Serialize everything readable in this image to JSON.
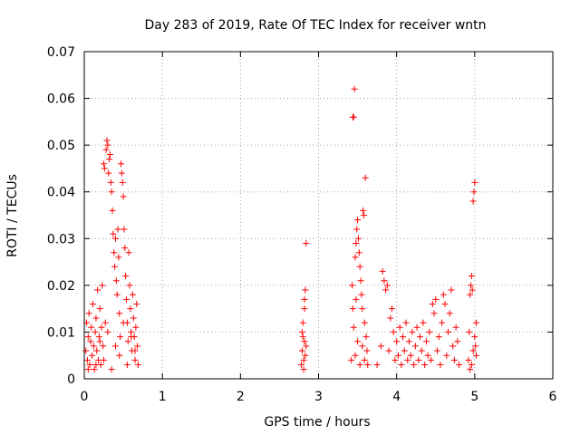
{
  "chart_data": {
    "type": "scatter",
    "title": "Day 283 of 2019, Rate Of TEC Index for receiver wntn",
    "xlabel": "GPS time / hours",
    "ylabel": "ROTI / TECUs",
    "xlim": [
      0,
      6
    ],
    "ylim": [
      0,
      0.07
    ],
    "xticks": [
      0,
      1,
      2,
      3,
      4,
      5,
      6
    ],
    "yticks": [
      0,
      0.01,
      0.02,
      0.03,
      0.04,
      0.05,
      0.06,
      0.07
    ],
    "xtick_labels": [
      "0",
      "1",
      "2",
      "3",
      "4",
      "5",
      "6"
    ],
    "ytick_labels": [
      "0",
      "0.01",
      "0.02",
      "0.03",
      "0.04",
      "0.05",
      "0.06",
      "0.07"
    ],
    "grid": true,
    "marker": "plus",
    "color": "#ff0000",
    "series": [
      {
        "name": "ROTI",
        "points": [
          [
            0.02,
            0.006
          ],
          [
            0.03,
            0.012
          ],
          [
            0.04,
            0.004
          ],
          [
            0.05,
            0.009
          ],
          [
            0.06,
            0.014
          ],
          [
            0.07,
            0.003
          ],
          [
            0.08,
            0.008
          ],
          [
            0.09,
            0.011
          ],
          [
            0.1,
            0.005
          ],
          [
            0.11,
            0.016
          ],
          [
            0.12,
            0.007
          ],
          [
            0.13,
            0.002
          ],
          [
            0.14,
            0.01
          ],
          [
            0.15,
            0.013
          ],
          [
            0.16,
            0.006
          ],
          [
            0.17,
            0.019
          ],
          [
            0.18,
            0.004
          ],
          [
            0.19,
            0.009
          ],
          [
            0.2,
            0.015
          ],
          [
            0.21,
            0.003
          ],
          [
            0.22,
            0.011
          ],
          [
            0.23,
            0.02
          ],
          [
            0.24,
            0.007
          ],
          [
            0.25,
            0.046
          ],
          [
            0.26,
            0.045
          ],
          [
            0.27,
            0.012
          ],
          [
            0.28,
            0.049
          ],
          [
            0.29,
            0.051
          ],
          [
            0.3,
            0.05
          ],
          [
            0.31,
            0.044
          ],
          [
            0.32,
            0.047
          ],
          [
            0.33,
            0.048
          ],
          [
            0.34,
            0.042
          ],
          [
            0.35,
            0.04
          ],
          [
            0.36,
            0.036
          ],
          [
            0.37,
            0.031
          ],
          [
            0.38,
            0.027
          ],
          [
            0.39,
            0.024
          ],
          [
            0.4,
            0.03
          ],
          [
            0.41,
            0.021
          ],
          [
            0.42,
            0.018
          ],
          [
            0.43,
            0.032
          ],
          [
            0.44,
            0.026
          ],
          [
            0.45,
            0.014
          ],
          [
            0.46,
            0.009
          ],
          [
            0.47,
            0.046
          ],
          [
            0.48,
            0.044
          ],
          [
            0.49,
            0.042
          ],
          [
            0.5,
            0.039
          ],
          [
            0.51,
            0.032
          ],
          [
            0.52,
            0.028
          ],
          [
            0.53,
            0.022
          ],
          [
            0.54,
            0.017
          ],
          [
            0.55,
            0.012
          ],
          [
            0.56,
            0.008
          ],
          [
            0.57,
            0.027
          ],
          [
            0.58,
            0.02
          ],
          [
            0.59,
            0.015
          ],
          [
            0.6,
            0.01
          ],
          [
            0.61,
            0.006
          ],
          [
            0.62,
            0.018
          ],
          [
            0.63,
            0.013
          ],
          [
            0.64,
            0.009
          ],
          [
            0.65,
            0.004
          ],
          [
            0.66,
            0.011
          ],
          [
            0.67,
            0.016
          ],
          [
            0.68,
            0.007
          ],
          [
            0.69,
            0.003
          ],
          [
            0.05,
            0.002
          ],
          [
            0.15,
            0.003
          ],
          [
            0.25,
            0.004
          ],
          [
            0.35,
            0.002
          ],
          [
            0.45,
            0.005
          ],
          [
            0.55,
            0.003
          ],
          [
            0.65,
            0.006
          ],
          [
            0.2,
            0.008
          ],
          [
            0.3,
            0.01
          ],
          [
            0.4,
            0.007
          ],
          [
            0.5,
            0.012
          ],
          [
            0.6,
            0.009
          ],
          [
            2.78,
            0.003
          ],
          [
            2.79,
            0.006
          ],
          [
            2.8,
            0.009
          ],
          [
            2.81,
            0.004
          ],
          [
            2.82,
            0.015
          ],
          [
            2.83,
            0.019
          ],
          [
            2.84,
            0.029
          ],
          [
            2.82,
            0.008
          ],
          [
            2.81,
            0.002
          ],
          [
            2.83,
            0.005
          ],
          [
            2.8,
            0.012
          ],
          [
            2.84,
            0.007
          ],
          [
            2.82,
            0.017
          ],
          [
            2.79,
            0.01
          ],
          [
            3.42,
            0.004
          ],
          [
            3.43,
            0.02
          ],
          [
            3.44,
            0.056
          ],
          [
            3.45,
            0.056
          ],
          [
            3.46,
            0.062
          ],
          [
            3.47,
            0.026
          ],
          [
            3.48,
            0.029
          ],
          [
            3.49,
            0.032
          ],
          [
            3.5,
            0.034
          ],
          [
            3.51,
            0.03
          ],
          [
            3.52,
            0.027
          ],
          [
            3.53,
            0.024
          ],
          [
            3.54,
            0.021
          ],
          [
            3.55,
            0.018
          ],
          [
            3.56,
            0.015
          ],
          [
            3.57,
            0.036
          ],
          [
            3.58,
            0.035
          ],
          [
            3.59,
            0.012
          ],
          [
            3.6,
            0.043
          ],
          [
            3.61,
            0.009
          ],
          [
            3.62,
            0.006
          ],
          [
            3.63,
            0.003
          ],
          [
            3.44,
            0.015
          ],
          [
            3.47,
            0.005
          ],
          [
            3.5,
            0.008
          ],
          [
            3.53,
            0.003
          ],
          [
            3.56,
            0.007
          ],
          [
            3.59,
            0.004
          ],
          [
            3.45,
            0.011
          ],
          [
            3.48,
            0.017
          ],
          [
            3.75,
            0.003
          ],
          [
            3.8,
            0.007
          ],
          [
            3.82,
            0.023
          ],
          [
            3.84,
            0.021
          ],
          [
            3.86,
            0.019
          ],
          [
            3.88,
            0.02
          ],
          [
            3.9,
            0.006
          ],
          [
            3.92,
            0.013
          ],
          [
            3.94,
            0.015
          ],
          [
            3.96,
            0.01
          ],
          [
            3.98,
            0.004
          ],
          [
            4.0,
            0.008
          ],
          [
            4.02,
            0.005
          ],
          [
            4.04,
            0.011
          ],
          [
            4.06,
            0.003
          ],
          [
            4.08,
            0.009
          ],
          [
            4.1,
            0.006
          ],
          [
            4.12,
            0.012
          ],
          [
            4.14,
            0.004
          ],
          [
            4.16,
            0.008
          ],
          [
            4.18,
            0.005
          ],
          [
            4.2,
            0.01
          ],
          [
            4.22,
            0.003
          ],
          [
            4.24,
            0.007
          ],
          [
            4.26,
            0.011
          ],
          [
            4.28,
            0.004
          ],
          [
            4.3,
            0.009
          ],
          [
            4.32,
            0.006
          ],
          [
            4.34,
            0.012
          ],
          [
            4.36,
            0.003
          ],
          [
            4.38,
            0.008
          ],
          [
            4.4,
            0.005
          ],
          [
            4.42,
            0.01
          ],
          [
            4.44,
            0.004
          ],
          [
            4.46,
            0.016
          ],
          [
            4.48,
            0.014
          ],
          [
            4.5,
            0.017
          ],
          [
            4.52,
            0.006
          ],
          [
            4.54,
            0.009
          ],
          [
            4.56,
            0.003
          ],
          [
            4.58,
            0.012
          ],
          [
            4.6,
            0.018
          ],
          [
            4.62,
            0.016
          ],
          [
            4.64,
            0.005
          ],
          [
            4.66,
            0.01
          ],
          [
            4.68,
            0.014
          ],
          [
            4.7,
            0.019
          ],
          [
            4.72,
            0.007
          ],
          [
            4.74,
            0.004
          ],
          [
            4.76,
            0.011
          ],
          [
            4.78,
            0.008
          ],
          [
            4.8,
            0.003
          ],
          [
            4.92,
            0.004
          ],
          [
            4.93,
            0.01
          ],
          [
            4.94,
            0.018
          ],
          [
            4.95,
            0.02
          ],
          [
            4.96,
            0.022
          ],
          [
            4.97,
            0.019
          ],
          [
            4.98,
            0.038
          ],
          [
            4.99,
            0.04
          ],
          [
            5.0,
            0.042
          ],
          [
            5.01,
            0.007
          ],
          [
            5.02,
            0.012
          ],
          [
            4.96,
            0.003
          ],
          [
            4.98,
            0.006
          ],
          [
            5.0,
            0.009
          ],
          [
            4.94,
            0.002
          ],
          [
            5.02,
            0.005
          ]
        ]
      }
    ]
  }
}
